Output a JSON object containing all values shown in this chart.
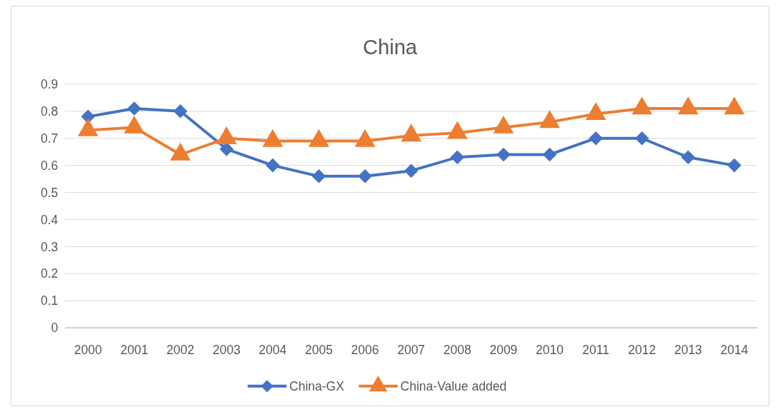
{
  "chart_data": {
    "type": "line",
    "title": "China",
    "categories": [
      "2000",
      "2001",
      "2002",
      "2003",
      "2004",
      "2005",
      "2006",
      "2007",
      "2008",
      "2009",
      "2010",
      "2011",
      "2012",
      "2013",
      "2014"
    ],
    "series": [
      {
        "name": "China-GX",
        "color": "#4472c4",
        "marker": "diamond",
        "values": [
          0.78,
          0.81,
          0.8,
          0.66,
          0.6,
          0.56,
          0.56,
          0.58,
          0.63,
          0.64,
          0.64,
          0.7,
          0.7,
          0.63,
          0.6
        ]
      },
      {
        "name": "China-Value added",
        "color": "#ed7d31",
        "marker": "triangle",
        "values": [
          0.73,
          0.74,
          0.64,
          0.7,
          0.69,
          0.69,
          0.69,
          0.71,
          0.72,
          0.74,
          0.76,
          0.79,
          0.81,
          0.81,
          0.81
        ]
      }
    ],
    "ylim": [
      0,
      0.9
    ],
    "yticks": [
      0,
      0.1,
      0.2,
      0.3,
      0.4,
      0.5,
      0.6,
      0.7,
      0.8,
      0.9
    ],
    "grid": "y",
    "legend": "bottom"
  }
}
